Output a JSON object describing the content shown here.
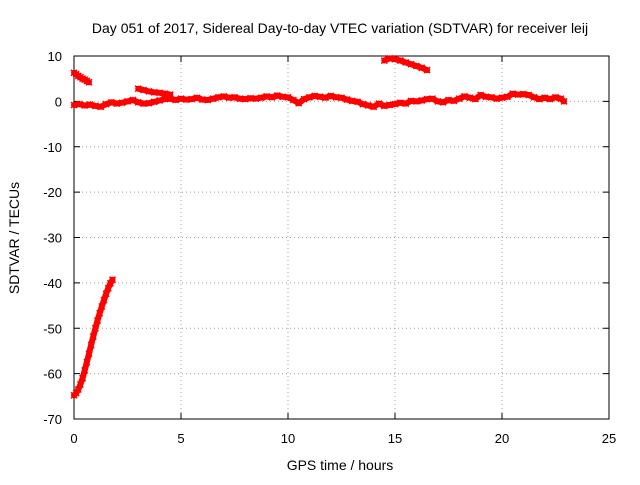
{
  "colors": {
    "series": "#ff0000",
    "grid": "#a0a0a0",
    "axis": "#000000",
    "background": "#ffffff"
  },
  "chart_data": {
    "type": "scatter",
    "title": "Day 051 of 2017, Sidereal Day-to-day VTEC variation (SDTVAR) for receiver leij",
    "xlabel": "GPS time / hours",
    "ylabel": "SDTVAR / TECUs",
    "xlim": [
      0,
      25
    ],
    "ylim": [
      -70,
      10
    ],
    "xticks": [
      0,
      5,
      10,
      15,
      20,
      25
    ],
    "yticks": [
      -70,
      -60,
      -50,
      -40,
      -30,
      -20,
      -10,
      0,
      10
    ],
    "xtick_labels": [
      "0",
      "5",
      "10",
      "15",
      "20",
      "25"
    ],
    "ytick_labels": [
      "-70",
      "-60",
      "-50",
      "-40",
      "-30",
      "-20",
      "-10",
      "0",
      "10"
    ],
    "grid": true,
    "legend": "none",
    "series": [
      {
        "segments": [
          {
            "x": [
              0.0,
              0.1,
              0.2,
              0.3,
              0.4,
              0.5,
              0.6,
              0.7
            ],
            "y": [
              6.3,
              6.0,
              5.6,
              5.3,
              5.0,
              4.8,
              4.5,
              4.2
            ]
          },
          {
            "x": [
              0.0,
              0.25,
              0.5,
              0.75,
              1.0,
              1.25,
              1.5,
              1.75,
              2.0,
              2.25,
              2.5,
              2.75,
              3.0,
              3.25,
              3.5,
              3.75,
              4.0,
              4.25,
              4.5,
              4.75,
              5.0,
              5.25,
              5.5,
              5.75,
              6.0,
              6.25,
              6.5,
              6.75,
              7.0,
              7.25,
              7.5,
              7.75,
              8.0,
              8.25,
              8.5,
              8.75,
              9.0,
              9.25,
              9.5,
              9.75,
              10.0,
              10.25,
              10.5,
              10.75,
              11.0,
              11.25,
              11.5,
              11.75,
              12.0,
              12.25,
              12.5,
              12.75,
              13.0,
              13.25,
              13.5,
              13.75,
              14.0,
              14.25,
              14.5,
              14.75,
              15.0,
              15.25,
              15.5,
              15.75,
              16.0,
              16.25,
              16.5,
              16.75,
              17.0,
              17.25,
              17.5,
              17.75,
              18.0,
              18.25,
              18.5,
              18.75,
              19.0,
              19.25,
              19.5,
              19.75,
              20.0,
              20.25,
              20.5,
              20.75,
              21.0,
              21.25,
              21.5,
              21.75,
              22.0,
              22.25,
              22.5,
              22.75,
              22.9
            ],
            "y": [
              -0.8,
              -0.6,
              -0.9,
              -0.7,
              -1.0,
              -1.2,
              -0.6,
              -0.2,
              -0.5,
              -0.3,
              0.0,
              0.3,
              -0.2,
              -0.5,
              -0.4,
              -0.1,
              0.2,
              0.5,
              0.6,
              0.3,
              0.6,
              0.4,
              0.5,
              0.8,
              0.4,
              0.3,
              0.6,
              0.9,
              1.1,
              0.8,
              0.9,
              0.6,
              0.5,
              0.7,
              0.6,
              0.8,
              1.1,
              0.9,
              1.3,
              1.0,
              0.9,
              0.3,
              -0.4,
              0.5,
              0.9,
              1.2,
              1.0,
              0.8,
              1.2,
              0.9,
              0.8,
              0.4,
              0.1,
              -0.1,
              -0.6,
              -0.9,
              -1.2,
              -0.5,
              -1.0,
              -0.8,
              -0.6,
              -0.3,
              -0.5,
              0.1,
              0.0,
              0.2,
              0.5,
              0.6,
              0.0,
              -0.2,
              0.3,
              0.1,
              0.6,
              1.1,
              0.8,
              0.5,
              1.4,
              1.0,
              0.9,
              0.6,
              0.8,
              1.0,
              1.7,
              1.5,
              1.6,
              1.4,
              0.9,
              0.5,
              0.8,
              0.5,
              0.9,
              0.6,
              0.0
            ]
          },
          {
            "x": [
              3.0,
              3.25,
              3.5,
              3.75,
              4.0,
              4.25,
              4.5
            ],
            "y": [
              2.8,
              2.5,
              2.2,
              2.0,
              1.9,
              1.7,
              1.5
            ]
          },
          {
            "x": [
              14.5,
              14.75,
              15.0,
              15.25,
              15.5,
              15.75,
              16.0,
              16.25,
              16.5
            ],
            "y": [
              9.0,
              9.5,
              9.3,
              9.0,
              8.6,
              8.2,
              7.8,
              7.4,
              6.9
            ]
          },
          {
            "x": [
              0.0,
              0.1,
              0.2,
              0.3,
              0.4,
              0.5,
              0.6,
              0.7,
              0.8,
              0.9,
              1.0,
              1.1,
              1.2,
              1.3,
              1.4,
              1.5,
              1.6,
              1.7,
              1.8
            ],
            "y": [
              -64.8,
              -64.3,
              -63.5,
              -62.4,
              -61.0,
              -59.3,
              -57.5,
              -55.6,
              -53.7,
              -51.8,
              -50.0,
              -48.3,
              -46.7,
              -45.2,
              -43.8,
              -42.4,
              -41.2,
              -40.1,
              -39.3
            ]
          }
        ]
      }
    ]
  }
}
